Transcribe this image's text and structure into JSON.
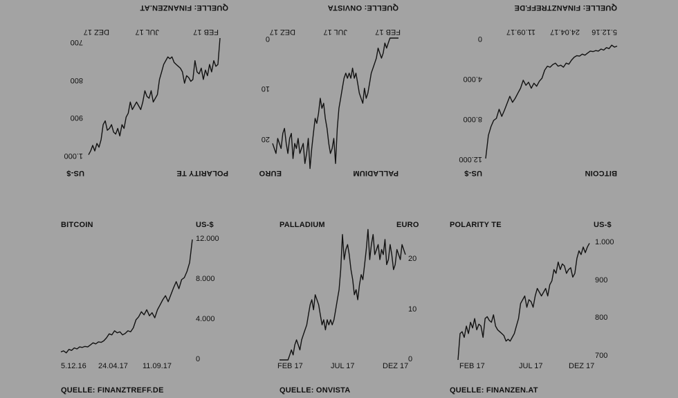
{
  "chart_data": [
    {
      "type": "line",
      "title": "BITCOIN",
      "unit": "US-$",
      "source": "QUELLE: FINANZTREFF.DE",
      "x_ticks": [
        "5.12.16",
        "24.04.17",
        "11.09.17"
      ],
      "y_ticks": [
        "12.000",
        "8.000",
        "4.000",
        "0"
      ],
      "ylim": [
        0,
        12000
      ],
      "series": [
        {
          "values": [
            800,
            900,
            700,
            1050,
            950,
            1200,
            1100,
            1300,
            1250,
            1350,
            1300,
            1500,
            1700,
            1600,
            1800,
            1750,
            1900,
            2200,
            2600,
            2500,
            2900,
            2700,
            2800,
            2500,
            2650,
            2900,
            2800,
            3200,
            4000,
            4300,
            4800,
            4500,
            5000,
            4400,
            4700,
            4200,
            5000,
            5500,
            6000,
            6400,
            5800,
            6500,
            7200,
            7800,
            7100,
            8000,
            8200,
            8800,
            9700,
            12000
          ]
        }
      ]
    },
    {
      "type": "line",
      "title": "PALLADIUM",
      "unit": "EURO",
      "source": "QUELLE: ONVISTA",
      "x_ticks": [
        "FEB 17",
        "JUL 17",
        "DEZ 17"
      ],
      "y_ticks": [
        "20",
        "10",
        "0"
      ],
      "ylim": [
        0,
        24
      ],
      "series": [
        {
          "values": [
            0,
            0,
            0,
            0,
            0,
            0,
            1,
            2,
            1,
            3,
            4,
            3,
            2,
            4,
            5,
            6,
            7,
            9,
            11,
            12,
            10,
            13,
            12,
            11,
            9,
            7,
            8,
            6,
            8,
            7,
            8,
            7,
            8,
            10,
            12,
            14,
            18,
            25,
            20,
            22,
            23,
            21,
            18,
            16,
            13,
            14,
            12,
            15,
            17,
            16,
            19,
            22,
            26,
            20,
            23,
            25,
            21,
            22,
            23,
            20,
            22,
            21,
            24,
            19,
            20,
            23,
            21,
            18,
            19,
            22,
            21,
            20,
            23,
            22,
            21
          ]
        }
      ]
    },
    {
      "type": "line",
      "title": "POLARITY TE",
      "unit": "US-$",
      "source": "QUELLE: FINANZEN.AT",
      "x_ticks": [
        "FEB 17",
        "JUL 17",
        "DEZ 17"
      ],
      "y_ticks": [
        "1.000",
        "900",
        "800",
        "700"
      ],
      "ylim": [
        690,
        1010
      ],
      "series": [
        {
          "values": [
            690,
            760,
            765,
            750,
            780,
            760,
            790,
            775,
            800,
            770,
            785,
            780,
            750,
            800,
            805,
            795,
            790,
            810,
            780,
            770,
            765,
            760,
            755,
            740,
            745,
            740,
            750,
            760,
            780,
            800,
            840,
            850,
            860,
            830,
            850,
            845,
            830,
            860,
            880,
            870,
            860,
            870,
            880,
            860,
            890,
            900,
            930,
            920,
            950,
            930,
            945,
            940,
            920,
            930,
            935,
            910,
            920,
            960,
            980,
            970,
            990,
            975,
            990,
            1000
          ]
        }
      ]
    }
  ]
}
